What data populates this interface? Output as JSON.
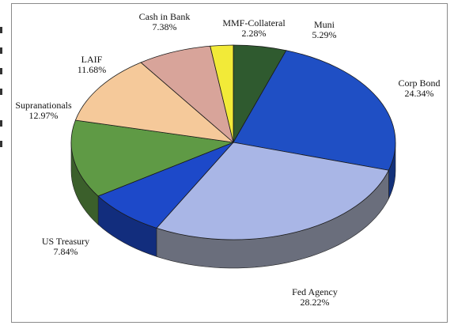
{
  "chart_data": {
    "type": "pie",
    "style": "3d",
    "title": "",
    "slices": [
      {
        "name": "Muni",
        "value": 5.29,
        "label": "Muni",
        "value_label": "5.29%",
        "color": "#2f5a2f"
      },
      {
        "name": "Corp Bond",
        "value": 24.34,
        "label": "Corp Bond",
        "value_label": "24.34%",
        "color": "#1f4fc4"
      },
      {
        "name": "Fed Agency",
        "value": 28.22,
        "label": "Fed Agency",
        "value_label": "28.22%",
        "color": "#a9b6e6"
      },
      {
        "name": "US Treasury",
        "value": 7.84,
        "label": "US Treasury",
        "value_label": "7.84%",
        "color": "#1d49c9"
      },
      {
        "name": "Supranationals",
        "value": 12.97,
        "label": "Supranationals",
        "value_label": "12.97%",
        "color": "#5f9a45"
      },
      {
        "name": "LAIF",
        "value": 11.68,
        "label": "LAIF",
        "value_label": "11.68%",
        "color": "#f5c99a"
      },
      {
        "name": "Cash in Bank",
        "value": 7.38,
        "label": "Cash in Bank",
        "value_label": "7.38%",
        "color": "#d8a49a"
      },
      {
        "name": "MMF-Collateral",
        "value": 2.28,
        "label": "MMF-Collateral",
        "value_label": "2.28%",
        "color": "#f2ea38"
      }
    ],
    "legend": "none"
  }
}
